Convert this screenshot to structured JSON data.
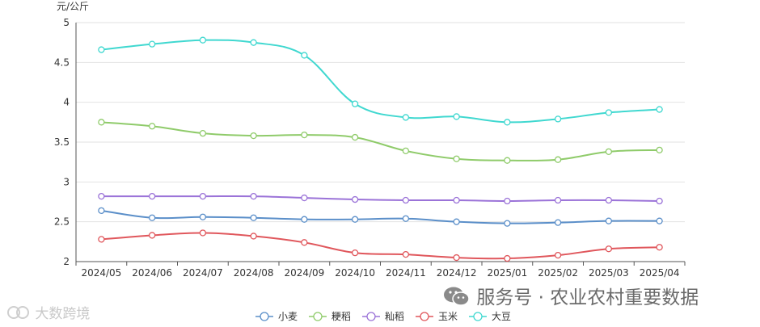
{
  "chart_data": {
    "type": "line",
    "ylabel": "元/公斤",
    "ylim": [
      2,
      5
    ],
    "yticks": [
      "2",
      "2.5",
      "3",
      "3.5",
      "4",
      "4.5",
      "5"
    ],
    "categories": [
      "2024/05",
      "2024/06",
      "2024/07",
      "2024/08",
      "2024/09",
      "2024/10",
      "2024/11",
      "2024/12",
      "2025/01",
      "2025/02",
      "2025/03",
      "2025/04"
    ],
    "grid": true,
    "legend": "bottom-center",
    "series": [
      {
        "name": "小麦",
        "color": "#5b8fc9",
        "values": [
          2.64,
          2.55,
          2.56,
          2.55,
          2.53,
          2.53,
          2.54,
          2.5,
          2.48,
          2.49,
          2.51,
          2.51
        ]
      },
      {
        "name": "粳稻",
        "color": "#8fcb6a",
        "values": [
          3.75,
          3.7,
          3.61,
          3.58,
          3.59,
          3.56,
          3.39,
          3.29,
          3.27,
          3.28,
          3.38,
          3.4
        ]
      },
      {
        "name": "籼稻",
        "color": "#9b73d8",
        "values": [
          2.82,
          2.82,
          2.82,
          2.82,
          2.8,
          2.78,
          2.77,
          2.77,
          2.76,
          2.77,
          2.77,
          2.76
        ]
      },
      {
        "name": "玉米",
        "color": "#e0575c",
        "values": [
          2.28,
          2.33,
          2.36,
          2.32,
          2.24,
          2.11,
          2.09,
          2.05,
          2.04,
          2.08,
          2.16,
          2.18
        ]
      },
      {
        "name": "大豆",
        "color": "#40d8d0",
        "values": [
          4.66,
          4.73,
          4.78,
          4.75,
          4.59,
          3.98,
          3.81,
          3.82,
          3.75,
          3.79,
          3.87,
          3.91
        ]
      }
    ]
  },
  "watermarks": {
    "right": "服务号 · 农业农村重要数据",
    "left": "大数跨境"
  }
}
